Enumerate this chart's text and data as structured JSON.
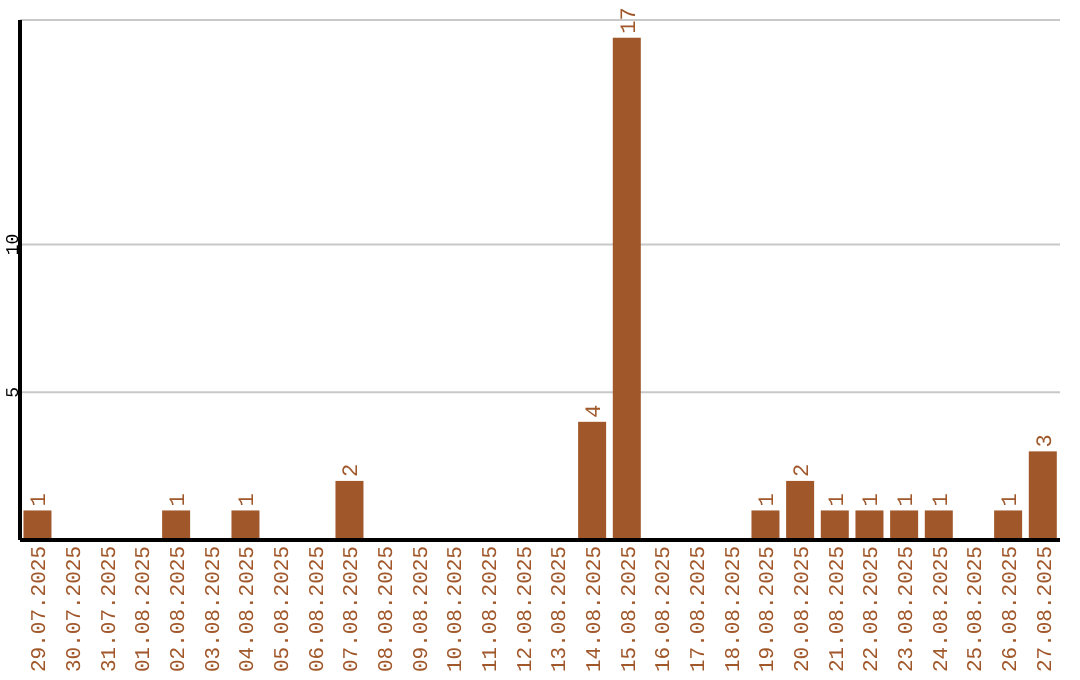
{
  "chart_data": {
    "type": "bar",
    "categories": [
      "29.07.2025",
      "30.07.2025",
      "31.07.2025",
      "01.08.2025",
      "02.08.2025",
      "03.08.2025",
      "04.08.2025",
      "05.08.2025",
      "06.08.2025",
      "07.08.2025",
      "08.08.2025",
      "09.08.2025",
      "10.08.2025",
      "11.08.2025",
      "12.08.2025",
      "13.08.2025",
      "14.08.2025",
      "15.08.2025",
      "16.08.2025",
      "17.08.2025",
      "18.08.2025",
      "19.08.2025",
      "20.08.2025",
      "21.08.2025",
      "22.08.2025",
      "23.08.2025",
      "24.08.2025",
      "25.08.2025",
      "26.08.2025",
      "27.08.2025"
    ],
    "values": [
      1,
      0,
      0,
      0,
      1,
      0,
      1,
      0,
      0,
      2,
      0,
      0,
      0,
      0,
      0,
      0,
      4,
      17,
      0,
      0,
      0,
      1,
      2,
      1,
      1,
      1,
      1,
      0,
      1,
      3
    ],
    "value_labels": [
      "1",
      null,
      null,
      null,
      "1",
      null,
      "1",
      null,
      null,
      "2",
      null,
      null,
      null,
      null,
      null,
      null,
      "4",
      "17",
      null,
      null,
      null,
      "1",
      "2",
      "1",
      "1",
      "1",
      "1",
      null,
      "1",
      "3"
    ],
    "color": "#a0572a",
    "ylim": [
      0,
      17.6
    ],
    "yticks": [
      5,
      10
    ],
    "grid": "y"
  }
}
